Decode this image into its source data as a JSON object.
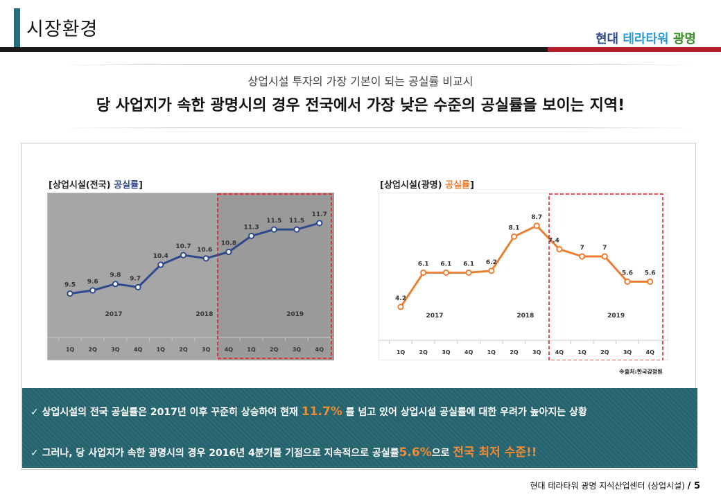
{
  "header": {
    "title": "시장환경",
    "brand": {
      "part1": "현대",
      "part2": "테라타워",
      "part3": "광명"
    }
  },
  "intro": {
    "subtitle": "상업시설 투자의 가장 기본이 되는 공실률 비교시",
    "headline": "당 사업지가 속한 광명시의 경우 전국에서 가장 낮은 수준의 공실률을 보이는 지역!"
  },
  "colors": {
    "blue_series": "#2f4a8c",
    "orange_series": "#ed7d31",
    "highlight_box": "#e0171f",
    "summary_bg": "#24636e"
  },
  "chart_data": [
    {
      "type": "line",
      "title_prefix": "[상업시설(전국) ",
      "title_highlight": "공실률",
      "title_suffix": "]",
      "categories": [
        "1Q",
        "2Q",
        "3Q",
        "4Q",
        "1Q",
        "2Q",
        "3Q",
        "4Q",
        "1Q",
        "2Q",
        "3Q",
        "4Q"
      ],
      "years": [
        {
          "label": "2017",
          "span": [
            0,
            3
          ]
        },
        {
          "label": "2018",
          "span": [
            4,
            7
          ]
        },
        {
          "label": "2019",
          "span": [
            8,
            11
          ]
        }
      ],
      "series": [
        {
          "values": [
            9.5,
            9.6,
            9.8,
            9.7,
            10.4,
            10.7,
            10.6,
            10.8,
            11.3,
            11.5,
            11.5,
            11.7
          ]
        }
      ],
      "ylim": [
        8.0,
        12.0
      ],
      "highlight": "4Q 2018 – 4Q 2019"
    },
    {
      "type": "line",
      "title_prefix": "[상업시설(광명) ",
      "title_highlight": "공실률",
      "title_suffix": "]",
      "categories": [
        "1Q",
        "2Q",
        "3Q",
        "4Q",
        "1Q",
        "2Q",
        "3Q",
        "4Q",
        "1Q",
        "2Q",
        "3Q",
        "4Q"
      ],
      "years": [
        {
          "label": "2017",
          "span": [
            0,
            3
          ]
        },
        {
          "label": "2018",
          "span": [
            4,
            7
          ]
        },
        {
          "label": "2019",
          "span": [
            8,
            11
          ]
        }
      ],
      "series": [
        {
          "values": [
            4.2,
            6.1,
            6.1,
            6.1,
            6.2,
            8.1,
            8.7,
            7.4,
            7,
            7,
            5.6,
            5.6
          ]
        }
      ],
      "ylim": [
        2.0,
        10.0
      ],
      "highlight": "4Q 2018 – 4Q 2019"
    }
  ],
  "source": "※출처:한국감정원",
  "summary": {
    "bullet1_pre": "✓ 상업시설의 전국 공실률은 2017년 이후 꾸준히 상승하여 현재 ",
    "bullet1_hl": "11.7%",
    "bullet1_post": " 를 넘고 있어 상업시설 공실률에 대한 우려가 높아지는 상황",
    "bullet2_pre": "✓ 그러나, 당 사업지가 속한 광명시의 경우 2016년 4분기를 기점으로 지속적으로 공실률",
    "bullet2_hl": "5.6%",
    "bullet2_mid": "으로 ",
    "bullet2_hl2": "전국 최저 수준!!"
  },
  "footer": {
    "text": "현대 테라타워 광명 지식산업센터 (상업시설)",
    "page": "/ 5"
  }
}
